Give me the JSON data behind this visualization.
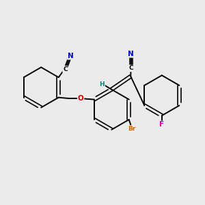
{
  "background_color": "#ebebeb",
  "bond_color": "#000000",
  "atom_colors": {
    "N": "#0000cc",
    "O": "#cc0000",
    "Br": "#cc6600",
    "F": "#cc00aa",
    "C": "#000000",
    "H": "#008888"
  }
}
